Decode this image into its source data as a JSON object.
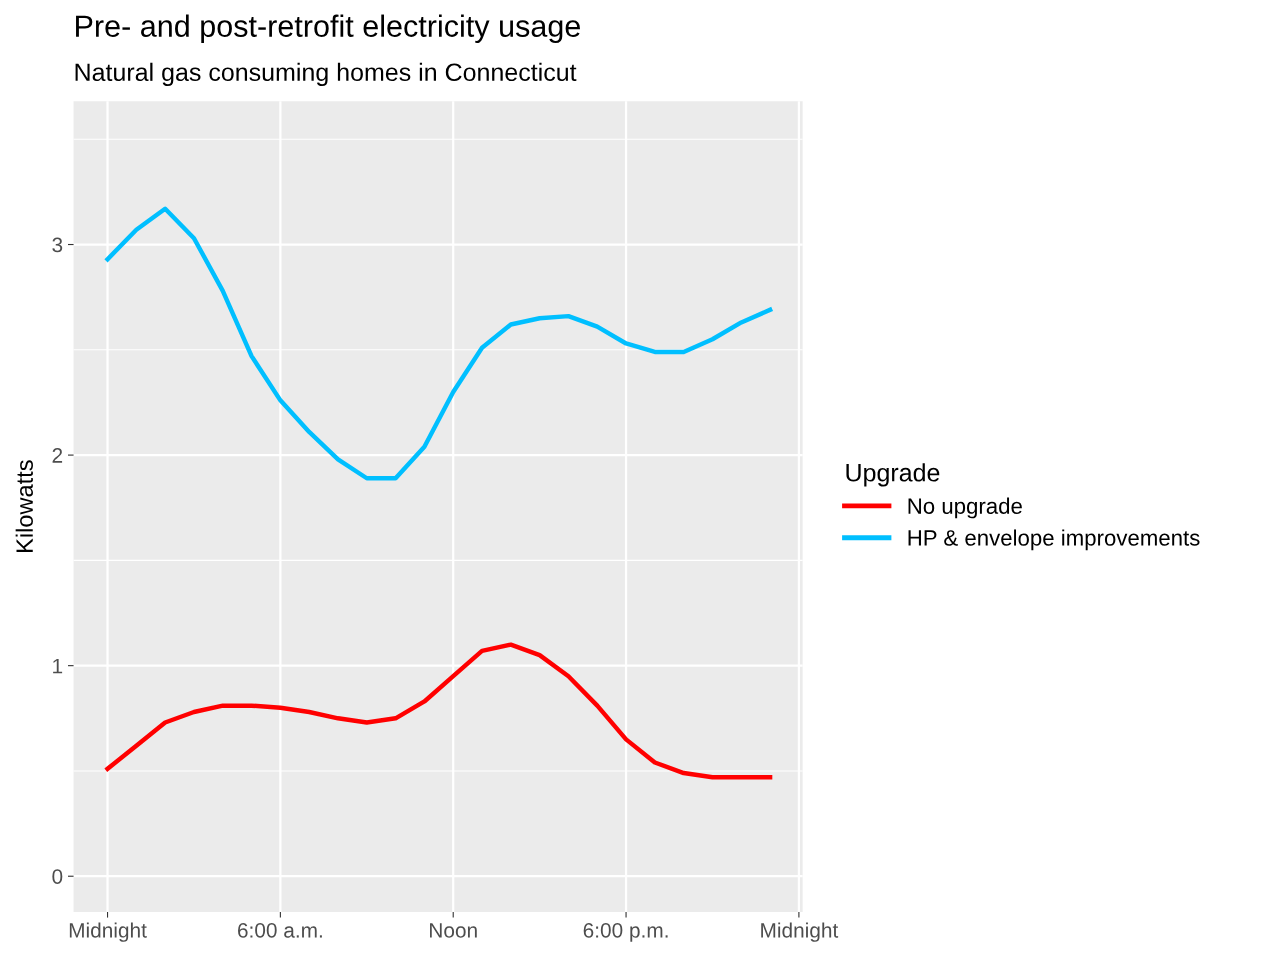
{
  "chart_data": {
    "type": "line",
    "title": "Pre- and post-retrofit electricity usage",
    "subtitle": "Natural gas consuming homes in Connecticut",
    "ylabel": "Kilowatts",
    "legend_title": "Upgrade",
    "x": [
      0,
      1,
      2,
      3,
      4,
      5,
      6,
      7,
      8,
      9,
      10,
      11,
      12,
      13,
      14,
      15,
      16,
      17,
      18,
      19,
      20,
      21,
      22,
      23
    ],
    "series": [
      {
        "name": "No upgrade",
        "color": "#ff0000",
        "values": [
          0.51,
          0.62,
          0.73,
          0.78,
          0.81,
          0.81,
          0.8,
          0.78,
          0.75,
          0.73,
          0.75,
          0.83,
          0.95,
          1.07,
          1.1,
          1.05,
          0.95,
          0.81,
          0.65,
          0.54,
          0.49,
          0.47,
          0.47,
          0.47
        ]
      },
      {
        "name": "HP & envelope improvements",
        "color": "#00bfff",
        "values": [
          2.93,
          3.07,
          3.17,
          3.03,
          2.78,
          2.47,
          2.26,
          2.11,
          1.98,
          1.89,
          1.89,
          2.04,
          2.3,
          2.51,
          2.62,
          2.65,
          2.66,
          2.61,
          2.53,
          2.49,
          2.49,
          2.55,
          2.63,
          2.69
        ]
      }
    ],
    "xlim": [
      -1.18,
      24.13
    ],
    "xticks": [
      {
        "value": 0,
        "label": "Midnight"
      },
      {
        "value": 6,
        "label": "6:00 a.m."
      },
      {
        "value": 12,
        "label": "Noon"
      },
      {
        "value": 18,
        "label": "6:00 p.m."
      },
      {
        "value": 24,
        "label": "Midnight"
      }
    ],
    "ylim": [
      -0.17,
      3.68
    ],
    "yticks": [
      0,
      1,
      2,
      3
    ],
    "grid": true,
    "legend": "right",
    "marker": "none",
    "line_style": "solid"
  }
}
